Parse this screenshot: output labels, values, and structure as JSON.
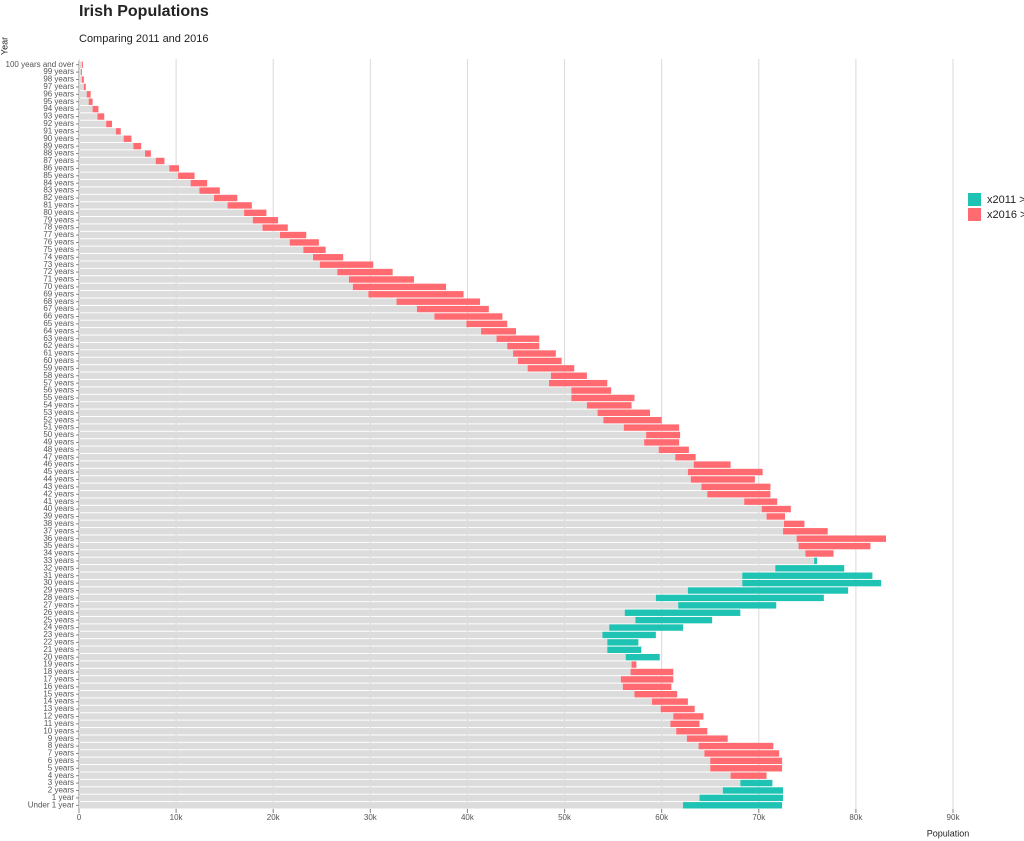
{
  "chart_data": {
    "type": "range-bar",
    "title": "Irish Populations",
    "subtitle": "Comparing 2011 and 2016",
    "y_label": "Year",
    "x_label": "Population",
    "categories": [
      "Under 1 year",
      "1 year",
      "2 years",
      "3 years",
      "4 years",
      "5 years",
      "6 years",
      "7 years",
      "8 years",
      "9 years",
      "10 years",
      "11 years",
      "12 years",
      "13 years",
      "14 years",
      "15 years",
      "16 years",
      "17 years",
      "18 years",
      "19 years",
      "20 years",
      "21 years",
      "22 years",
      "23 years",
      "24 years",
      "25 years",
      "26 years",
      "27 years",
      "28 years",
      "29 years",
      "30 years",
      "31 years",
      "32 years",
      "33 years",
      "34 years",
      "35 years",
      "36 years",
      "37 years",
      "38 years",
      "39 years",
      "40 years",
      "41 years",
      "42 years",
      "43 years",
      "44 years",
      "45 years",
      "46 years",
      "47 years",
      "48 years",
      "49 years",
      "50 years",
      "51 years",
      "52 years",
      "53 years",
      "54 years",
      "55 years",
      "56 years",
      "57 years",
      "58 years",
      "59 years",
      "60 years",
      "61 years",
      "62 years",
      "63 years",
      "64 years",
      "65 years",
      "66 years",
      "67 years",
      "68 years",
      "69 years",
      "70 years",
      "71 years",
      "72 years",
      "73 years",
      "74 years",
      "75 years",
      "76 years",
      "77 years",
      "78 years",
      "79 years",
      "80 years",
      "81 years",
      "82 years",
      "83 years",
      "84 years",
      "85 years",
      "86 years",
      "87 years",
      "88 years",
      "89 years",
      "90 years",
      "91 years",
      "92 years",
      "93 years",
      "94 years",
      "95 years",
      "96 years",
      "97 years",
      "98 years",
      "99 years",
      "100 years and over"
    ],
    "series": [
      {
        "name": "x2011 >",
        "color": "#1fc3b3",
        "values": [
          72400,
          72500,
          72500,
          71400,
          67100,
          65000,
          65000,
          64400,
          63800,
          62600,
          61500,
          60900,
          61200,
          59900,
          59000,
          57200,
          56000,
          55800,
          56800,
          56900,
          59800,
          57900,
          57600,
          59400,
          62200,
          65200,
          68100,
          71800,
          76700,
          79200,
          82600,
          81700,
          78800,
          76000,
          74800,
          74100,
          73900,
          72500,
          72600,
          70800,
          70300,
          68500,
          64700,
          64100,
          63000,
          62700,
          63300,
          61400,
          59700,
          58200,
          58400,
          56100,
          54000,
          53400,
          52300,
          50700,
          50700,
          48400,
          48600,
          46200,
          45200,
          44700,
          44100,
          43000,
          41400,
          39900,
          36600,
          34800,
          32700,
          29800,
          28200,
          27800,
          26600,
          24800,
          24100,
          23100,
          21700,
          20700,
          18900,
          17900,
          17000,
          15300,
          13900,
          12400,
          11500,
          10200,
          9300,
          7900,
          6800,
          5600,
          4600,
          3800,
          2800,
          1900,
          1400,
          1000,
          800,
          500,
          300,
          200,
          300
        ]
      },
      {
        "name": "x2016 >",
        "color": "#ff6b70",
        "values": [
          62200,
          63900,
          66300,
          68100,
          70800,
          72400,
          72400,
          72100,
          71500,
          66800,
          64700,
          63900,
          64300,
          63400,
          62700,
          61600,
          61000,
          61200,
          61200,
          57400,
          56300,
          54400,
          54400,
          53900,
          54600,
          57300,
          56200,
          61700,
          59400,
          62700,
          68300,
          68300,
          71700,
          75700,
          77700,
          81500,
          83100,
          77100,
          74700,
          72700,
          73300,
          71900,
          71200,
          71200,
          69600,
          70400,
          67100,
          63500,
          62800,
          61800,
          61900,
          61800,
          60000,
          58800,
          56900,
          57200,
          54800,
          54400,
          52300,
          51000,
          49700,
          49100,
          47400,
          47400,
          45000,
          44100,
          43600,
          42200,
          41300,
          39600,
          37800,
          34500,
          32300,
          30300,
          27200,
          25400,
          24700,
          23400,
          21500,
          20500,
          19300,
          17800,
          16300,
          14500,
          13200,
          11900,
          10300,
          8800,
          7400,
          6400,
          5400,
          4300,
          3400,
          2600,
          2000,
          1400,
          1200,
          700,
          500,
          300,
          400
        ]
      }
    ],
    "xlim": [
      0,
      90000
    ],
    "xticks": [
      0,
      {
        "value": 10000,
        "label": "10k"
      },
      {
        "value": 20000,
        "label": "20k"
      },
      {
        "value": 30000,
        "label": "30k"
      },
      {
        "value": 40000,
        "label": "40k"
      },
      {
        "value": 50000,
        "label": "50k"
      },
      {
        "value": 60000,
        "label": "60k"
      },
      {
        "value": 70000,
        "label": "70k"
      },
      {
        "value": 80000,
        "label": "80k"
      },
      {
        "value": 90000,
        "label": "90k"
      }
    ],
    "grid": true,
    "base_color": "#dcdcdc"
  }
}
